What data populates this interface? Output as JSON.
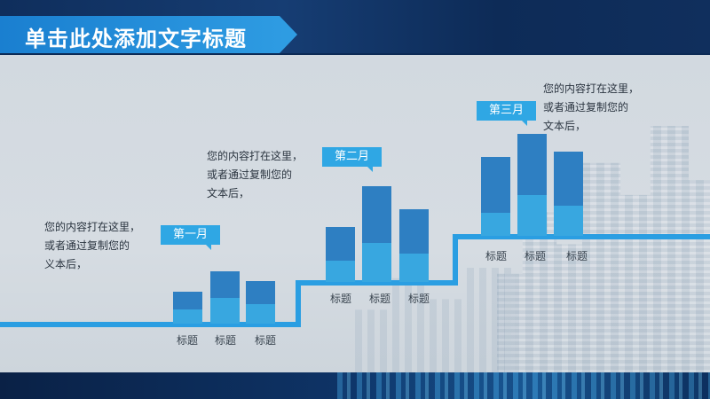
{
  "header": {
    "title": "单击此处添加文字标题"
  },
  "sections": [
    {
      "month": "第一月",
      "description": [
        "您的内容打在这里，",
        "或者通过复制您的",
        "义本后，"
      ],
      "categories": [
        "标题",
        "标题",
        "标题"
      ],
      "bars": [
        {
          "top": 0.55,
          "bottom": 0.45
        },
        {
          "top": 0.52,
          "bottom": 0.48
        },
        {
          "top": 0.56,
          "bottom": 0.44
        }
      ]
    },
    {
      "month": "第二月",
      "description": [
        "您的内容打在这里，",
        "或者通过复制您的",
        "文本后，"
      ],
      "categories": [
        "标题",
        "标题",
        "标题"
      ],
      "bars": [
        {
          "top": 0.55,
          "bottom": 0.45
        },
        {
          "top": 0.56,
          "bottom": 0.44
        },
        {
          "top": 0.55,
          "bottom": 0.45
        }
      ]
    },
    {
      "month": "第三月",
      "description": [
        "您的内容打在这里，",
        "或者通过复制您的",
        "文本后，"
      ],
      "categories": [
        "标题",
        "标题",
        "标题"
      ],
      "bars": [
        {
          "top": 0.7,
          "bottom": 0.3
        },
        {
          "top": 0.59,
          "bottom": 0.41
        },
        {
          "top": 0.6,
          "bottom": 0.4
        }
      ]
    }
  ],
  "colors": {
    "accent": "#2a9ee2",
    "bar_dark": "#2e7fc2",
    "bar_light": "#38a7e0"
  }
}
